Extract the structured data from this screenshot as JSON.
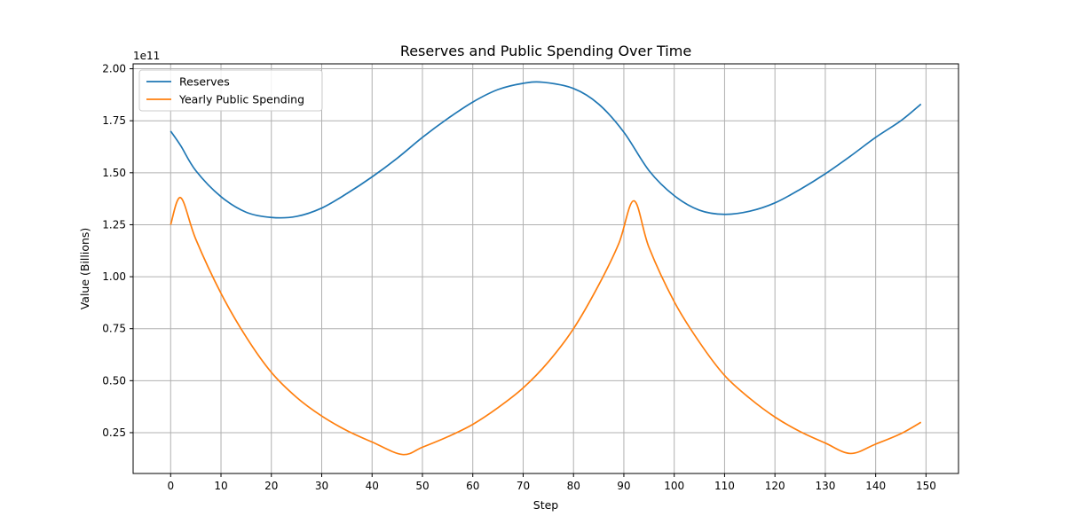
{
  "chart_data": {
    "type": "line",
    "title": "Reserves and Public Spending Over Time",
    "xlabel": "Step",
    "ylabel": "Value (Billions)",
    "y_offset_text": "1e11",
    "xlim": [
      -7.45,
      156.45
    ],
    "ylim": [
      5370000000.0,
      202370000000.0
    ],
    "x_ticks": [
      0,
      10,
      20,
      30,
      40,
      50,
      60,
      70,
      80,
      90,
      100,
      110,
      120,
      130,
      140,
      150
    ],
    "y_ticks": [
      0.25,
      0.5,
      0.75,
      1.0,
      1.25,
      1.5,
      1.75,
      2.0
    ],
    "y_tick_labels": [
      "0.25",
      "0.50",
      "0.75",
      "1.00",
      "1.25",
      "1.50",
      "1.75",
      "2.00"
    ],
    "y_tick_scale": 100000000000.0,
    "grid": true,
    "legend_position": "upper-left",
    "series": [
      {
        "name": "Reserves",
        "color": "#1f77b4",
        "x": [
          0,
          2,
          5,
          10,
          15,
          20,
          25,
          30,
          35,
          40,
          45,
          50,
          55,
          60,
          65,
          70,
          74,
          80,
          85,
          90,
          95,
          100,
          105,
          110,
          115,
          120,
          125,
          130,
          135,
          140,
          145,
          149
        ],
        "y": [
          170000000000.0,
          163000000000.0,
          151000000000.0,
          138500000000.0,
          131000000000.0,
          128500000000.0,
          129000000000.0,
          133000000000.0,
          140000000000.0,
          148000000000.0,
          157000000000.0,
          167000000000.0,
          176000000000.0,
          184000000000.0,
          190000000000.0,
          193000000000.0,
          193500000000.0,
          190500000000.0,
          183000000000.0,
          169500000000.0,
          151000000000.0,
          139000000000.0,
          132000000000.0,
          130000000000.0,
          131500000000.0,
          135500000000.0,
          142000000000.0,
          149500000000.0,
          158000000000.0,
          167000000000.0,
          175000000000.0,
          183000000000.0
        ]
      },
      {
        "name": "Yearly Public Spending",
        "color": "#ff7f0e",
        "x": [
          0,
          2,
          5,
          10,
          15,
          20,
          25,
          30,
          35,
          40,
          46,
          50,
          55,
          60,
          65,
          70,
          75,
          80,
          85,
          89,
          92,
          95,
          100,
          105,
          110,
          115,
          120,
          125,
          130,
          135,
          140,
          145,
          149
        ],
        "y": [
          125000000000.0,
          138000000000.0,
          118000000000.0,
          92000000000.0,
          71000000000.0,
          54000000000.0,
          42000000000.0,
          33000000000.0,
          26000000000.0,
          20500000000.0,
          14500000000.0,
          18000000000.0,
          23000000000.0,
          29000000000.0,
          37000000000.0,
          46500000000.0,
          59000000000.0,
          75000000000.0,
          96000000000.0,
          116000000000.0,
          136500000000.0,
          114000000000.0,
          88000000000.0,
          68500000000.0,
          52500000000.0,
          41500000000.0,
          32500000000.0,
          25500000000.0,
          20000000000.0,
          15000000000.0,
          19500000000.0,
          24500000000.0,
          30000000000.0
        ]
      }
    ]
  }
}
